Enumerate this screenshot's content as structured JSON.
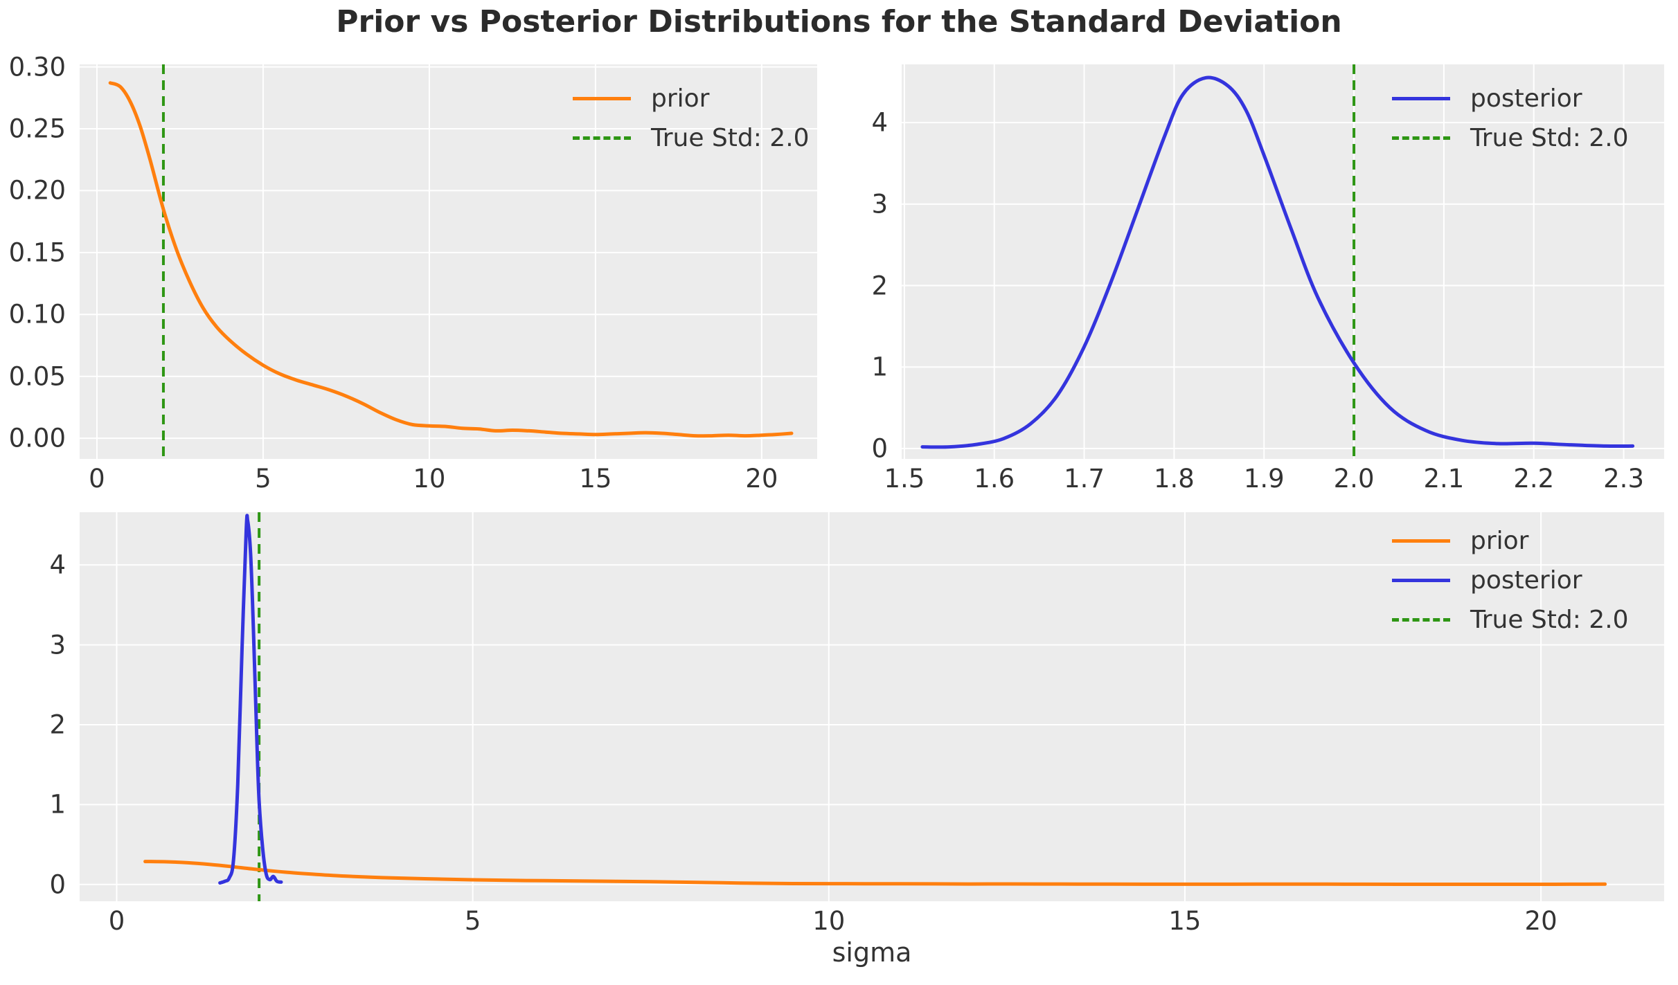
{
  "title": "Prior vs Posterior Distributions for the Standard Deviation",
  "colors": {
    "prior": "#ff7f0e",
    "posterior": "#3434dd",
    "true_std": "#2e9614",
    "plot_background": "#ececec",
    "gridline": "#ffffff",
    "figure_background": "#ffffff",
    "tick_label": "#333333",
    "title_text": "#2b2b2b"
  },
  "chart_data": [
    {
      "id": "prior",
      "type": "line",
      "xlabel": "",
      "ylabel": "",
      "grid": true,
      "legend_position": "upper right",
      "xlim": [
        -0.52,
        21.67
      ],
      "ylim": [
        -0.0167,
        0.302
      ],
      "xticks": [
        0,
        5,
        10,
        15,
        20
      ],
      "xtick_labels": [
        "0",
        "5",
        "10",
        "15",
        "20"
      ],
      "yticks": [
        0,
        0.05,
        0.1,
        0.15,
        0.2,
        0.25,
        0.3
      ],
      "ytick_labels": [
        "0.00",
        "0.05",
        "0.10",
        "0.15",
        "0.20",
        "0.25",
        "0.30"
      ],
      "vline": {
        "x": 2.0,
        "color_key": "true_std",
        "style": "dashed"
      },
      "legend": [
        {
          "label": "prior",
          "color_key": "prior",
          "dashed": false
        },
        {
          "label": "True Std: 2.0",
          "color_key": "true_std",
          "dashed": true
        }
      ],
      "series": [
        {
          "name": "prior",
          "color_key": "prior",
          "x": [
            0.4,
            0.7,
            1.0,
            1.3,
            1.6,
            2.0,
            2.4,
            2.8,
            3.2,
            3.6,
            4.0,
            4.5,
            5.0,
            5.5,
            6.0,
            6.5,
            7.0,
            7.5,
            8.0,
            8.5,
            9.0,
            9.5,
            10.0,
            10.5,
            11.0,
            11.5,
            12.0,
            12.5,
            13.0,
            13.5,
            14.0,
            14.5,
            15.0,
            15.5,
            16.0,
            16.5,
            17.0,
            17.5,
            18.0,
            18.5,
            19.0,
            19.5,
            20.0,
            20.4,
            20.9
          ],
          "y": [
            0.287,
            0.284,
            0.272,
            0.252,
            0.225,
            0.185,
            0.152,
            0.126,
            0.105,
            0.09,
            0.079,
            0.068,
            0.059,
            0.052,
            0.047,
            0.043,
            0.039,
            0.034,
            0.028,
            0.021,
            0.015,
            0.011,
            0.01,
            0.0095,
            0.008,
            0.0075,
            0.006,
            0.0065,
            0.006,
            0.005,
            0.004,
            0.0035,
            0.003,
            0.0035,
            0.004,
            0.0045,
            0.004,
            0.003,
            0.002,
            0.002,
            0.0025,
            0.002,
            0.0025,
            0.003,
            0.004
          ]
        }
      ]
    },
    {
      "id": "posterior",
      "type": "line",
      "xlabel": "",
      "ylabel": "",
      "grid": true,
      "legend_position": "upper right",
      "xlim": [
        1.497,
        2.345
      ],
      "ylim": [
        -0.128,
        4.715
      ],
      "xticks": [
        1.5,
        1.6,
        1.7,
        1.8,
        1.9,
        2.0,
        2.1,
        2.2,
        2.3
      ],
      "xtick_labels": [
        "1.5",
        "1.6",
        "1.7",
        "1.8",
        "1.9",
        "2.0",
        "2.1",
        "2.2",
        "2.3"
      ],
      "yticks": [
        0,
        1,
        2,
        3,
        4
      ],
      "ytick_labels": [
        "0",
        "1",
        "2",
        "3",
        "4"
      ],
      "vline": {
        "x": 2.0,
        "color_key": "true_std",
        "style": "dashed"
      },
      "legend": [
        {
          "label": "posterior",
          "color_key": "posterior",
          "dashed": false
        },
        {
          "label": "True Std: 2.0",
          "color_key": "true_std",
          "dashed": true
        }
      ],
      "series": [
        {
          "name": "posterior",
          "color_key": "posterior",
          "x": [
            1.52,
            1.55,
            1.58,
            1.61,
            1.64,
            1.67,
            1.7,
            1.73,
            1.76,
            1.79,
            1.81,
            1.835,
            1.86,
            1.88,
            1.9,
            1.93,
            1.96,
            2.0,
            2.04,
            2.08,
            2.12,
            2.16,
            2.2,
            2.24,
            2.28,
            2.31
          ],
          "y": [
            0.02,
            0.02,
            0.05,
            0.12,
            0.3,
            0.65,
            1.25,
            2.05,
            2.95,
            3.85,
            4.35,
            4.55,
            4.45,
            4.15,
            3.6,
            2.7,
            1.85,
            1.05,
            0.5,
            0.22,
            0.1,
            0.06,
            0.065,
            0.045,
            0.03,
            0.03
          ]
        }
      ]
    },
    {
      "id": "combined",
      "type": "line",
      "xlabel": "sigma",
      "ylabel": "",
      "grid": true,
      "legend_position": "upper right",
      "xlim": [
        -0.52,
        21.73
      ],
      "ylim": [
        -0.21,
        4.66
      ],
      "xticks": [
        0,
        5,
        10,
        15,
        20
      ],
      "xtick_labels": [
        "0",
        "5",
        "10",
        "15",
        "20"
      ],
      "yticks": [
        0,
        1,
        2,
        3,
        4
      ],
      "ytick_labels": [
        "0",
        "1",
        "2",
        "3",
        "4"
      ],
      "vline": {
        "x": 2.0,
        "color_key": "true_std",
        "style": "dashed"
      },
      "legend": [
        {
          "label": "prior",
          "color_key": "prior",
          "dashed": false
        },
        {
          "label": "posterior",
          "color_key": "posterior",
          "dashed": false
        },
        {
          "label": "True Std: 2.0",
          "color_key": "true_std",
          "dashed": true
        }
      ],
      "series": [
        {
          "name": "prior",
          "color_key": "prior",
          "x": [
            0.4,
            0.7,
            1.0,
            1.3,
            1.6,
            2.0,
            2.4,
            2.8,
            3.2,
            3.6,
            4.0,
            4.5,
            5.0,
            5.5,
            6.0,
            6.5,
            7.0,
            7.5,
            8.0,
            8.5,
            9.0,
            9.5,
            10.0,
            10.5,
            11.0,
            11.5,
            12.0,
            12.5,
            13.0,
            13.5,
            14.0,
            14.5,
            15.0,
            15.5,
            16.0,
            16.5,
            17.0,
            17.5,
            18.0,
            18.5,
            19.0,
            19.5,
            20.0,
            20.4,
            20.9
          ],
          "y": [
            0.287,
            0.284,
            0.272,
            0.252,
            0.225,
            0.185,
            0.152,
            0.126,
            0.105,
            0.09,
            0.079,
            0.068,
            0.059,
            0.052,
            0.047,
            0.043,
            0.039,
            0.034,
            0.028,
            0.021,
            0.015,
            0.011,
            0.01,
            0.0095,
            0.008,
            0.0075,
            0.006,
            0.0065,
            0.006,
            0.005,
            0.004,
            0.0035,
            0.003,
            0.0035,
            0.004,
            0.0045,
            0.004,
            0.003,
            0.002,
            0.002,
            0.0025,
            0.002,
            0.0025,
            0.003,
            0.004
          ]
        },
        {
          "name": "posterior",
          "color_key": "posterior",
          "x": [
            1.45,
            1.52,
            1.58,
            1.64,
            1.7,
            1.76,
            1.82,
            1.84,
            1.88,
            1.92,
            1.97,
            2.0,
            2.05,
            2.1,
            2.15,
            2.2,
            2.25,
            2.31
          ],
          "y": [
            0.02,
            0.04,
            0.08,
            0.3,
            1.25,
            2.95,
            4.45,
            4.55,
            4.15,
            3.2,
            1.75,
            1.05,
            0.45,
            0.13,
            0.06,
            0.1,
            0.04,
            0.03
          ]
        }
      ]
    }
  ]
}
